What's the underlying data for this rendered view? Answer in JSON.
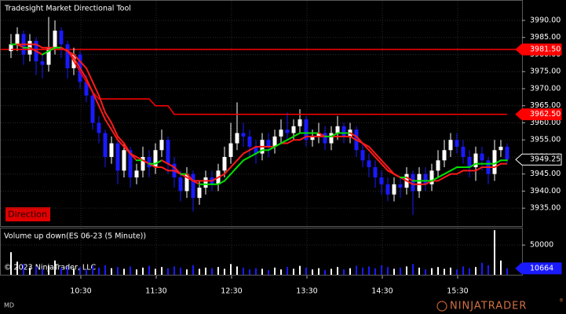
{
  "chart_data": {
    "type": "candlestick",
    "title": "Tradesight Market Directional Tool",
    "direction_label": "Direction",
    "copyright": "© 2023 NinjaTrader, LLC",
    "footer_left": "MD",
    "logo": "NINJATRADER",
    "logo_mark": "®",
    "ylim": [
      3929.75,
      3995.75
    ],
    "yticks": [
      {
        "value": 3990,
        "label": "3990.00"
      },
      {
        "value": 3985,
        "label": "3985.00"
      },
      {
        "value": 3980,
        "label": "3980.00"
      },
      {
        "value": 3975,
        "label": "3975.00"
      },
      {
        "value": 3970,
        "label": "3970.00"
      },
      {
        "value": 3965,
        "label": "3965.00"
      },
      {
        "value": 3960,
        "label": "3960.00"
      },
      {
        "value": 3955,
        "label": "3955.00"
      },
      {
        "value": 3950,
        "label": "3950.00"
      },
      {
        "value": 3945,
        "label": "3945.00"
      },
      {
        "value": 3940,
        "label": "3940.00"
      },
      {
        "value": 3935,
        "label": "3935.00"
      }
    ],
    "xticks": [
      "10:30",
      "11:30",
      "12:30",
      "13:30",
      "14:30",
      "15:30"
    ],
    "grid": true,
    "up_color": "#ffffff",
    "down_color": "#1a1aff",
    "candles": {
      "open": [
        3981,
        3983,
        3986,
        3980,
        3984,
        3978,
        3977,
        3982,
        3987,
        3983,
        3976,
        3980,
        3972,
        3968,
        3960,
        3957,
        3950,
        3954,
        3946,
        3952,
        3944,
        3946,
        3950,
        3947,
        3952,
        3955,
        3948,
        3944,
        3940,
        3945,
        3938,
        3941,
        3944,
        3942,
        3946,
        3950,
        3954,
        3957,
        3956,
        3953,
        3951,
        3955,
        3953,
        3956,
        3958,
        3957,
        3959,
        3961,
        3955,
        3956,
        3957,
        3954,
        3957,
        3959,
        3956,
        3958,
        3952,
        3949,
        3947,
        3944,
        3942,
        3939,
        3942,
        3941,
        3945,
        3940,
        3945,
        3942,
        3946,
        3949,
        3952,
        3955,
        3953,
        3950,
        3947,
        3951,
        3949,
        3945,
        3952,
        3953
      ],
      "high": [
        3986,
        3988,
        3987,
        3986,
        3985,
        3980,
        3991,
        3990,
        3988,
        3984,
        3982,
        3981,
        3974,
        3969,
        3962,
        3958,
        3956,
        3955,
        3954,
        3953,
        3948,
        3953,
        3952,
        3954,
        3958,
        3956,
        3950,
        3946,
        3947,
        3946,
        3943,
        3946,
        3946,
        3948,
        3953,
        3960,
        3966,
        3960,
        3958,
        3955,
        3957,
        3957,
        3958,
        3961,
        3963,
        3961,
        3964,
        3962,
        3958,
        3960,
        3959,
        3959,
        3962,
        3960,
        3960,
        3959,
        3954,
        3951,
        3949,
        3946,
        3944,
        3944,
        3944,
        3947,
        3946,
        3947,
        3947,
        3948,
        3952,
        3955,
        3957,
        3957,
        3955,
        3952,
        3953,
        3953,
        3950,
        3955,
        3955,
        3954
      ],
      "low": [
        3979,
        3981,
        3977,
        3978,
        3974,
        3973,
        3975,
        3980,
        3979,
        3973,
        3974,
        3970,
        3966,
        3958,
        3954,
        3947,
        3948,
        3942,
        3944,
        3941,
        3942,
        3944,
        3944,
        3945,
        3950,
        3945,
        3941,
        3937,
        3938,
        3934,
        3936,
        3939,
        3940,
        3940,
        3944,
        3948,
        3952,
        3953,
        3950,
        3948,
        3949,
        3950,
        3951,
        3954,
        3955,
        3955,
        3957,
        3953,
        3953,
        3954,
        3952,
        3952,
        3955,
        3954,
        3954,
        3950,
        3947,
        3944,
        3941,
        3939,
        3937,
        3937,
        3938,
        3939,
        3933,
        3938,
        3940,
        3940,
        3944,
        3947,
        3950,
        3951,
        3948,
        3944,
        3943,
        3946,
        3942,
        3943,
        3950,
        3948
      ],
      "close": [
        3983,
        3986,
        3980,
        3984,
        3978,
        3977,
        3982,
        3987,
        3983,
        3976,
        3980,
        3972,
        3968,
        3960,
        3957,
        3950,
        3954,
        3946,
        3952,
        3944,
        3946,
        3950,
        3947,
        3952,
        3955,
        3948,
        3944,
        3940,
        3945,
        3938,
        3941,
        3944,
        3942,
        3946,
        3950,
        3954,
        3957,
        3956,
        3953,
        3951,
        3955,
        3953,
        3956,
        3958,
        3957,
        3959,
        3961,
        3955,
        3956,
        3957,
        3954,
        3957,
        3959,
        3956,
        3958,
        3952,
        3949,
        3947,
        3944,
        3942,
        3939,
        3942,
        3941,
        3945,
        3940,
        3945,
        3942,
        3946,
        3949,
        3952,
        3955,
        3953,
        3950,
        3947,
        3951,
        3949,
        3945,
        3952,
        3953,
        3949.25
      ]
    },
    "fast_line": {
      "up_color": "#00e000",
      "down_color": "#ff1a1a",
      "values": [
        3983,
        3983,
        3982,
        3982,
        3981,
        3980,
        3981,
        3982,
        3982,
        3981,
        3980,
        3978,
        3976,
        3972,
        3968,
        3963,
        3960,
        3956,
        3954,
        3951,
        3949,
        3949,
        3948,
        3948,
        3949,
        3948,
        3947,
        3945,
        3945,
        3943,
        3942,
        3942,
        3942,
        3942,
        3943,
        3945,
        3947,
        3949,
        3950,
        3951,
        3952,
        3952,
        3953,
        3954,
        3955,
        3956,
        3957,
        3957,
        3957,
        3957,
        3956,
        3956,
        3957,
        3957,
        3957,
        3956,
        3954,
        3952,
        3950,
        3948,
        3946,
        3945,
        3944,
        3944,
        3943,
        3943,
        3943,
        3943,
        3944,
        3945,
        3946,
        3947,
        3947,
        3947,
        3948,
        3948,
        3948,
        3948,
        3949,
        3949
      ]
    },
    "slow_line": {
      "color": "#ff1a1a",
      "values": [
        3983,
        3983,
        3983,
        3983,
        3983,
        3982,
        3982,
        3982,
        3982,
        3981,
        3979,
        3976,
        3973,
        3969,
        3965,
        3961,
        3958,
        3955,
        3953,
        3951,
        3950,
        3949,
        3948,
        3947,
        3947,
        3946,
        3946,
        3945,
        3944,
        3943,
        3943,
        3943,
        3943,
        3944,
        3945,
        3947,
        3949,
        3951,
        3952,
        3953,
        3953,
        3953,
        3953,
        3954,
        3954,
        3955,
        3955,
        3956,
        3956,
        3956,
        3956,
        3956,
        3956,
        3956,
        3956,
        3955,
        3954,
        3953,
        3951,
        3949,
        3947,
        3945,
        3944,
        3943,
        3942,
        3942,
        3942,
        3943,
        3943,
        3944,
        3945,
        3945,
        3946,
        3946,
        3946,
        3947,
        3947,
        3947,
        3948,
        3948
      ]
    },
    "stop_line": {
      "color": "#ff0000",
      "values": [
        3981.5,
        3981.5,
        3981.5,
        3981.5,
        3981.5,
        3981.5,
        3981.5,
        3981.5,
        3981.5,
        3981.5,
        3978,
        3975,
        3972,
        3969,
        3967,
        3967,
        3967,
        3967,
        3967,
        3967,
        3967,
        3967,
        3967,
        3965,
        3965,
        3965,
        3962.5,
        3962.5,
        3962.5,
        3962.5,
        3962.5,
        3962.5,
        3962.5,
        3962.5,
        3962.5,
        3962.5,
        3962.5,
        3962.5,
        3962.5,
        3962.5,
        3962.5,
        3962.5,
        3962.5,
        3962.5,
        3962.5,
        3962.5,
        3962.5,
        3962.5,
        3962.5,
        3962.5,
        3962.5,
        3962.5,
        3962.5,
        3962.5,
        3962.5,
        3962.5,
        3962.5,
        3962.5,
        3962.5,
        3962.5,
        3962.5,
        3962.5,
        3962.5,
        3962.5,
        3962.5,
        3962.5,
        3962.5,
        3962.5,
        3962.5,
        3962.5,
        3962.5,
        3962.5,
        3962.5,
        3962.5,
        3962.5,
        3962.5,
        3962.5,
        3962.5,
        3962.5,
        3962.5
      ]
    },
    "levels": [
      {
        "value": 3981.5,
        "label": "3981.50",
        "color": "#ff0000"
      },
      {
        "value": 3962.5,
        "label": "3962.50",
        "color": "#ff0000"
      }
    ],
    "volume": {
      "title": "Volume up down(ES 06-23 (5 Minute))",
      "ylim": [
        0,
        78000
      ],
      "yticks": [
        50000
      ],
      "values": [
        38000,
        22000,
        18000,
        12000,
        14000,
        10000,
        16000,
        24000,
        12000,
        14000,
        11000,
        13000,
        9000,
        15000,
        12000,
        16000,
        11000,
        13000,
        10000,
        14000,
        9000,
        12000,
        15000,
        10000,
        13000,
        11000,
        14000,
        12000,
        9000,
        16000,
        10000,
        12000,
        11000,
        13000,
        10000,
        18000,
        14000,
        12000,
        9000,
        11000,
        10000,
        8000,
        12000,
        9000,
        13000,
        10000,
        15000,
        12000,
        9000,
        11000,
        8000,
        10000,
        13000,
        9000,
        11000,
        15000,
        12000,
        14000,
        11000,
        16000,
        13000,
        10000,
        12000,
        14000,
        18000,
        12000,
        9000,
        11000,
        13000,
        10000,
        12000,
        9000,
        14000,
        11000,
        13000,
        20000,
        16000,
        75000,
        24000,
        10664
      ]
    }
  }
}
